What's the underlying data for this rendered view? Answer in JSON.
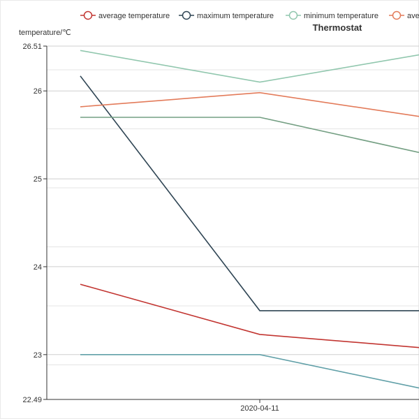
{
  "chart_data": {
    "type": "line",
    "title": "Thermostat",
    "ylabel": "temperature/℃",
    "xlabel": "",
    "ylim": [
      22.49,
      26.51
    ],
    "y_ticks": [
      {
        "value": 26.51,
        "label": "26.51"
      },
      {
        "value": 26,
        "label": "26"
      },
      {
        "value": 25,
        "label": "25"
      },
      {
        "value": 24,
        "label": "24"
      },
      {
        "value": 23,
        "label": "23"
      },
      {
        "value": 22.49,
        "label": "22.49"
      }
    ],
    "x_tick_labels": [
      "2020-04-11"
    ],
    "legend_position": "top",
    "series": [
      {
        "name": "average temperature",
        "color": "#c23531",
        "values": [
          23.8,
          23.23,
          23.08
        ]
      },
      {
        "name": "maximum temperature",
        "color": "#2f4554",
        "values": [
          26.17,
          23.5,
          23.5
        ]
      },
      {
        "name": "minimum temperature",
        "color": "#91c7ae",
        "values": [
          26.46,
          26.1,
          26.41
        ]
      },
      {
        "name": "ave",
        "color": "#e37b5a",
        "values": [
          25.82,
          25.98,
          25.71
        ]
      },
      {
        "name": "",
        "color": "#749f83",
        "values": [
          25.7,
          25.7,
          25.3
        ]
      },
      {
        "name": "",
        "color": "#61a0a8",
        "values": [
          23.0,
          23.0,
          22.62
        ]
      }
    ]
  }
}
